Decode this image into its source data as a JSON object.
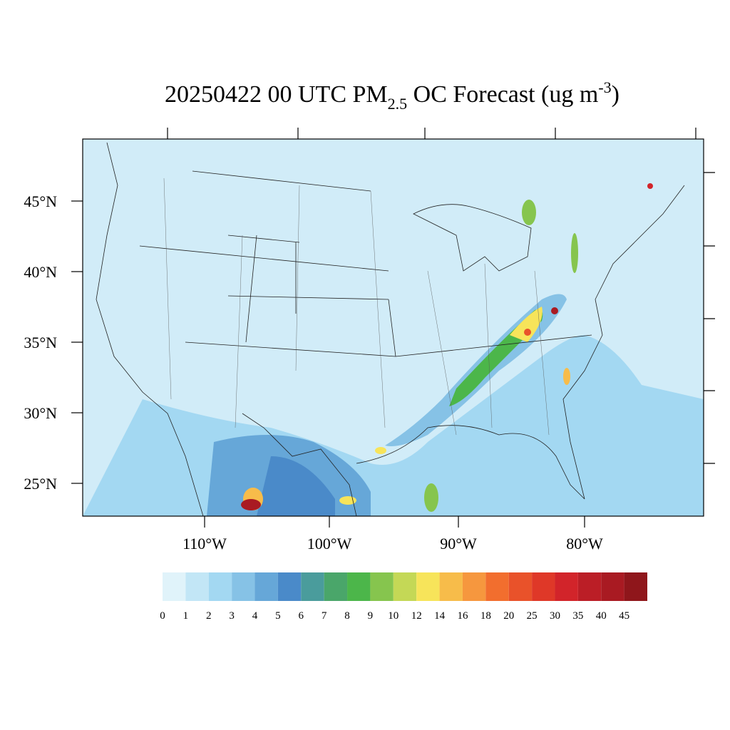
{
  "header": {
    "title": {
      "main": "20250422 00 UTC PM",
      "subscript": "2.5",
      "middle": " OC Forecast (ug m",
      "superscript": "-3",
      "end": ")"
    }
  },
  "map": {
    "lat_labels": [
      "45°N",
      "40°N",
      "35°N",
      "30°N",
      "25°N"
    ],
    "lon_labels": [
      "110°W",
      "100°W",
      "90°W",
      "80°W"
    ]
  },
  "colorbar": {
    "labels": [
      0,
      1,
      2,
      3,
      4,
      5,
      6,
      7,
      8,
      9,
      10,
      12,
      14,
      16,
      18,
      20,
      25,
      30,
      35,
      40,
      45
    ],
    "colors": [
      "#e0f3fa",
      "#c2e6f6",
      "#a3d8f2",
      "#86c2e6",
      "#66a7d8",
      "#4a8ac9",
      "#4a9c9c",
      "#4aa66a",
      "#4cb64a",
      "#86c54e",
      "#c4d856",
      "#f7e45a",
      "#f7bc4a",
      "#f6973e",
      "#f26e2e",
      "#e9522a",
      "#df3828",
      "#d2242a",
      "#bb1e26",
      "#a91a22",
      "#8f161b"
    ]
  }
}
